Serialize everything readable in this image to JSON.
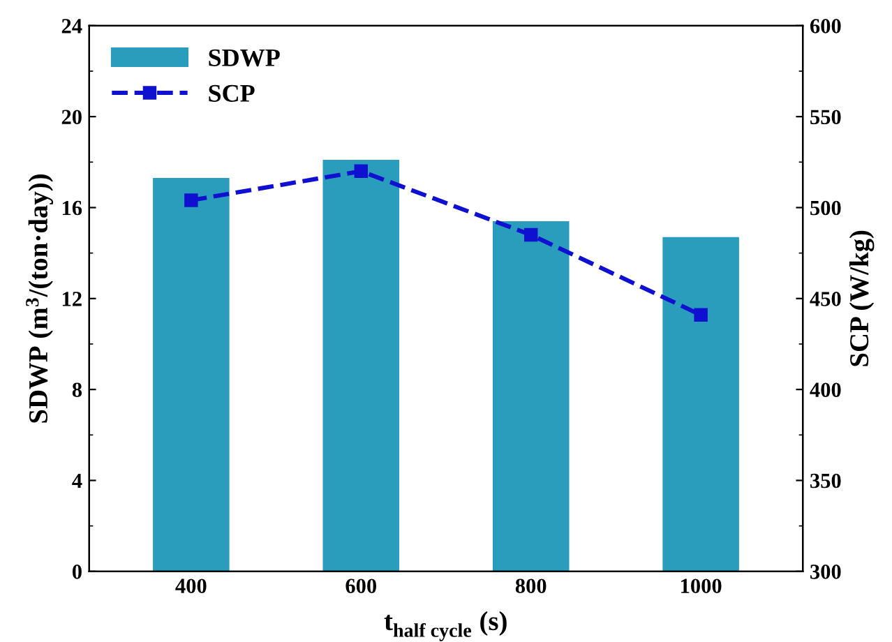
{
  "chart_data": {
    "type": "bar",
    "xlabel": "t$_{half cycle}$ (s)",
    "ylabel": "SDWP (m$^{3}$/(ton·day))",
    "y2label": "SCP (W/kg)",
    "categories": [
      "400",
      "600",
      "800",
      "1000"
    ],
    "series": [
      {
        "name": "SDWP",
        "color": "#2a9cbc",
        "values": [
          17.3,
          18.1,
          15.4,
          14.7
        ]
      },
      {
        "name": "SCP",
        "type": "line",
        "axis": "y2",
        "color": "#1010d0",
        "marker": "square",
        "line_style": "dashed",
        "values": [
          504,
          520,
          485,
          441
        ]
      }
    ],
    "ylim": [
      0,
      24
    ],
    "yticks": [
      0,
      4,
      8,
      12,
      16,
      20,
      24
    ],
    "y2lim": [
      300,
      600
    ],
    "y2ticks": [
      300,
      350,
      400,
      450,
      500,
      550,
      600
    ],
    "grid": false,
    "legend": "top left"
  }
}
